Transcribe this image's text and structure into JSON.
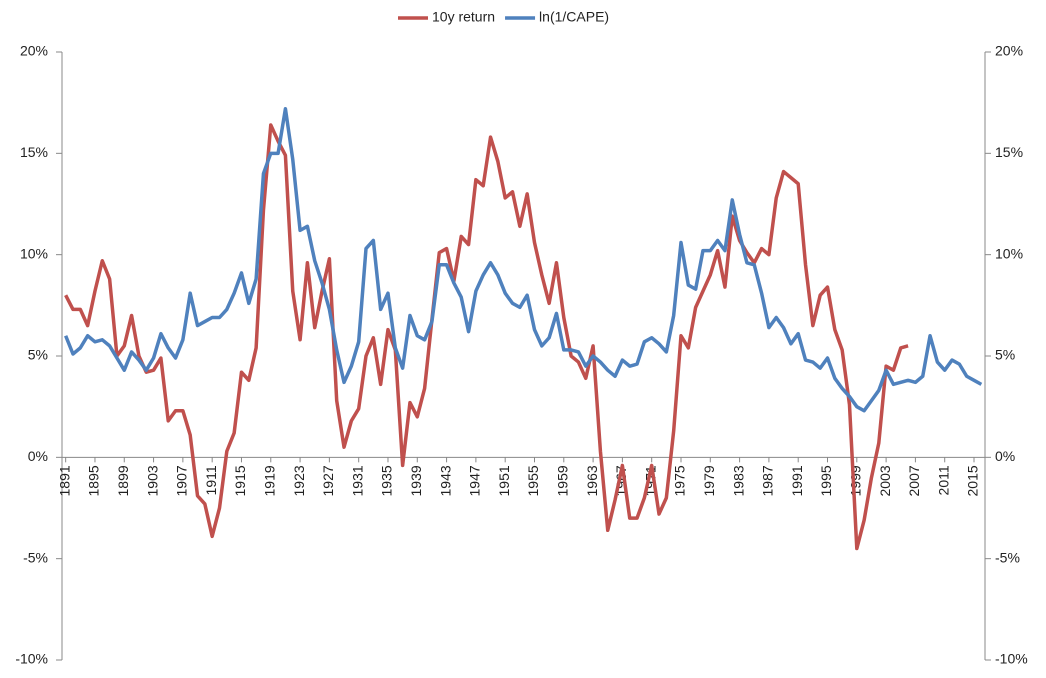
{
  "chart_data": {
    "type": "line",
    "x": [
      1891,
      1892,
      1893,
      1894,
      1895,
      1896,
      1897,
      1898,
      1899,
      1900,
      1901,
      1902,
      1903,
      1904,
      1905,
      1906,
      1907,
      1908,
      1909,
      1910,
      1911,
      1912,
      1913,
      1914,
      1915,
      1916,
      1917,
      1918,
      1919,
      1920,
      1921,
      1922,
      1923,
      1924,
      1925,
      1926,
      1927,
      1928,
      1929,
      1930,
      1931,
      1932,
      1933,
      1934,
      1935,
      1936,
      1937,
      1938,
      1939,
      1940,
      1941,
      1942,
      1943,
      1944,
      1945,
      1946,
      1947,
      1948,
      1949,
      1950,
      1951,
      1952,
      1953,
      1954,
      1955,
      1956,
      1957,
      1958,
      1959,
      1960,
      1961,
      1962,
      1963,
      1964,
      1965,
      1966,
      1967,
      1968,
      1969,
      1970,
      1971,
      1972,
      1973,
      1974,
      1975,
      1976,
      1977,
      1978,
      1979,
      1980,
      1981,
      1982,
      1983,
      1984,
      1985,
      1986,
      1987,
      1988,
      1989,
      1990,
      1991,
      1992,
      1993,
      1994,
      1995,
      1996,
      1997,
      1998,
      1999,
      2000,
      2001,
      2002,
      2003,
      2004,
      2005,
      2006,
      2007,
      2008,
      2009,
      2010,
      2011,
      2012,
      2013,
      2014,
      2015,
      2016
    ],
    "series": [
      {
        "name": "10y return",
        "color": "#c0504d",
        "values": [
          8.0,
          7.3,
          7.3,
          6.5,
          8.2,
          9.7,
          8.8,
          5.0,
          5.5,
          7.0,
          5.0,
          4.2,
          4.3,
          4.9,
          1.8,
          2.3,
          2.3,
          1.1,
          -1.9,
          -2.3,
          -3.9,
          -2.5,
          0.3,
          1.2,
          4.2,
          3.8,
          5.4,
          12.2,
          16.4,
          15.6,
          14.9,
          8.2,
          5.8,
          9.6,
          6.4,
          8.2,
          9.8,
          2.8,
          0.5,
          1.8,
          2.4,
          5.0,
          5.9,
          3.6,
          6.3,
          5.3,
          -0.4,
          2.7,
          2.0,
          3.4,
          6.8,
          10.1,
          10.3,
          8.7,
          10.9,
          10.5,
          13.7,
          13.4,
          15.8,
          14.6,
          12.8,
          13.1,
          11.4,
          13.0,
          10.6,
          9.0,
          7.6,
          9.6,
          6.9,
          5.0,
          4.7,
          3.9,
          5.5,
          0.3,
          -3.6,
          -2.1,
          -0.4,
          -3.0,
          -3.0,
          -2.0,
          -0.4,
          -2.8,
          -2.0,
          1.3,
          6.0,
          5.4,
          7.4,
          8.2,
          9.0,
          10.2,
          8.4,
          11.9,
          10.7,
          10.1,
          9.6,
          10.3,
          10.0,
          12.8,
          14.1,
          13.8,
          13.5,
          9.5,
          6.5,
          8.0,
          8.4,
          6.3,
          5.3,
          2.6,
          -4.5,
          -3.1,
          -1.0,
          0.7,
          4.5,
          4.3,
          5.4,
          5.5,
          null,
          null,
          null,
          null,
          null,
          null,
          null,
          null,
          null,
          null
        ]
      },
      {
        "name": "ln(1/CAPE)",
        "color": "#4f81bd",
        "values": [
          6.0,
          5.1,
          5.4,
          6.0,
          5.7,
          5.8,
          5.5,
          4.9,
          4.3,
          5.2,
          4.8,
          4.3,
          4.9,
          6.1,
          5.4,
          4.9,
          5.8,
          8.1,
          6.5,
          6.7,
          6.9,
          6.9,
          7.3,
          8.1,
          9.1,
          7.6,
          8.8,
          14.0,
          15.0,
          15.0,
          17.2,
          14.7,
          11.2,
          11.4,
          9.7,
          8.6,
          7.3,
          5.3,
          3.7,
          4.5,
          5.7,
          10.3,
          10.7,
          7.3,
          8.1,
          5.4,
          4.4,
          7.0,
          6.0,
          5.8,
          6.7,
          9.5,
          9.5,
          8.6,
          7.9,
          6.2,
          8.2,
          9.0,
          9.6,
          9.0,
          8.1,
          7.6,
          7.4,
          8.0,
          6.3,
          5.5,
          5.9,
          7.1,
          5.3,
          5.3,
          5.2,
          4.5,
          5.0,
          4.7,
          4.3,
          4.0,
          4.8,
          4.5,
          4.6,
          5.7,
          5.9,
          5.6,
          5.2,
          7.0,
          10.6,
          8.5,
          8.3,
          10.2,
          10.2,
          10.7,
          10.2,
          12.7,
          11.0,
          9.6,
          9.5,
          8.1,
          6.4,
          6.9,
          6.4,
          5.6,
          6.1,
          4.8,
          4.7,
          4.4,
          4.9,
          3.9,
          3.4,
          3.0,
          2.5,
          2.3,
          2.8,
          3.3,
          4.3,
          3.6,
          3.7,
          3.8,
          3.7,
          4.0,
          6.0,
          4.7,
          4.3,
          4.8,
          4.6,
          4.0,
          3.8,
          3.6
        ]
      }
    ],
    "xlim": [
      1890.5,
      2016.5
    ],
    "xticks": [
      1891,
      1895,
      1899,
      1903,
      1907,
      1911,
      1915,
      1919,
      1923,
      1927,
      1931,
      1935,
      1939,
      1943,
      1947,
      1951,
      1955,
      1959,
      1963,
      1967,
      1971,
      1975,
      1979,
      1983,
      1987,
      1991,
      1995,
      1999,
      2003,
      2007,
      2011,
      2015
    ],
    "ylim": [
      -10,
      20
    ],
    "yticks": [
      {
        "value": -10,
        "label": "-10%"
      },
      {
        "value": -5,
        "label": "-5%"
      },
      {
        "value": 0,
        "label": "0%"
      },
      {
        "value": 5,
        "label": "5%"
      },
      {
        "value": 10,
        "label": "10%"
      },
      {
        "value": 15,
        "label": "15%"
      },
      {
        "value": 20,
        "label": "20%"
      }
    ],
    "grid": false,
    "legend": "top"
  }
}
